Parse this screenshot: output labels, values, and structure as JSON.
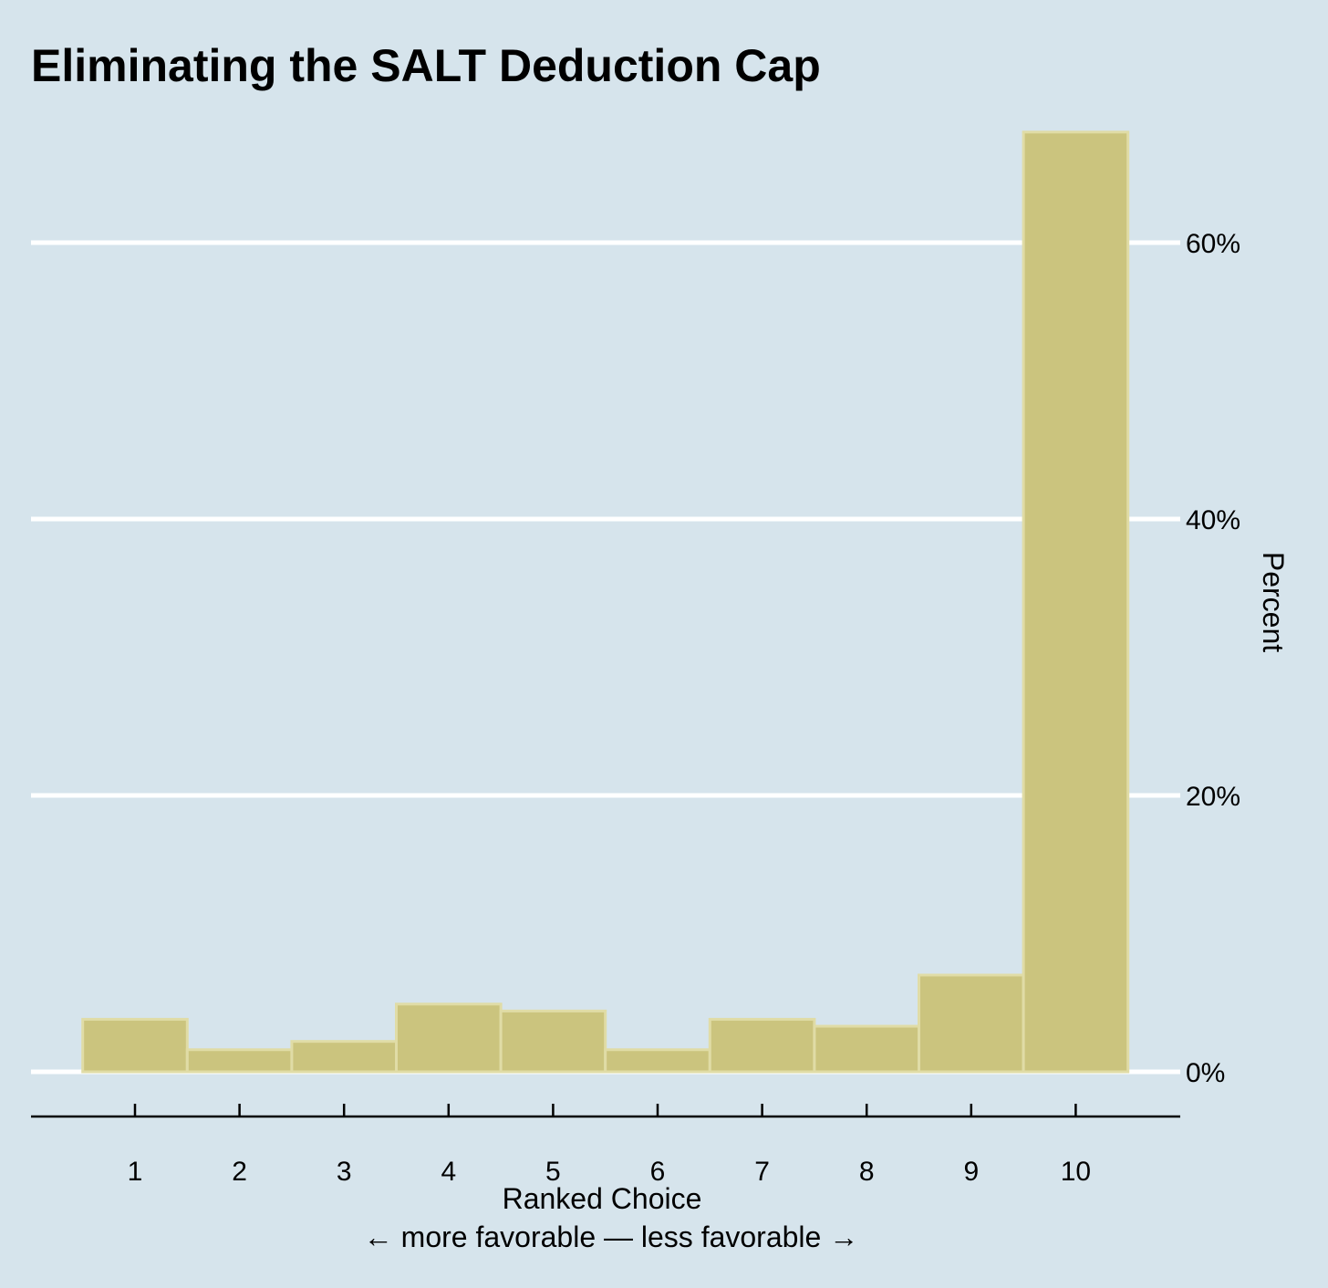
{
  "chart_data": {
    "type": "bar",
    "title": "Eliminating the SALT Deduction Cap",
    "xlabel": "Ranked Choice",
    "xlabel_sub": "← more favorable — less favorable →",
    "ylabel": "Percent",
    "categories": [
      "1",
      "2",
      "3",
      "4",
      "5",
      "6",
      "7",
      "8",
      "9",
      "10"
    ],
    "values": [
      3.8,
      1.6,
      2.2,
      4.9,
      4.4,
      1.6,
      3.8,
      3.3,
      7.0,
      68.0
    ],
    "ylim": [
      0,
      68
    ],
    "yticks": [
      0,
      20,
      40,
      60
    ],
    "ytick_labels": [
      "0%",
      "20%",
      "40%",
      "60%"
    ],
    "yaxis_position": "right",
    "grid": true,
    "legend": "none",
    "colors": {
      "background": "#d6e4ec",
      "bar_fill": "#cbc47e",
      "bar_edge": "#e0dca6",
      "gridline": "#ffffff",
      "text": "#000000"
    }
  }
}
